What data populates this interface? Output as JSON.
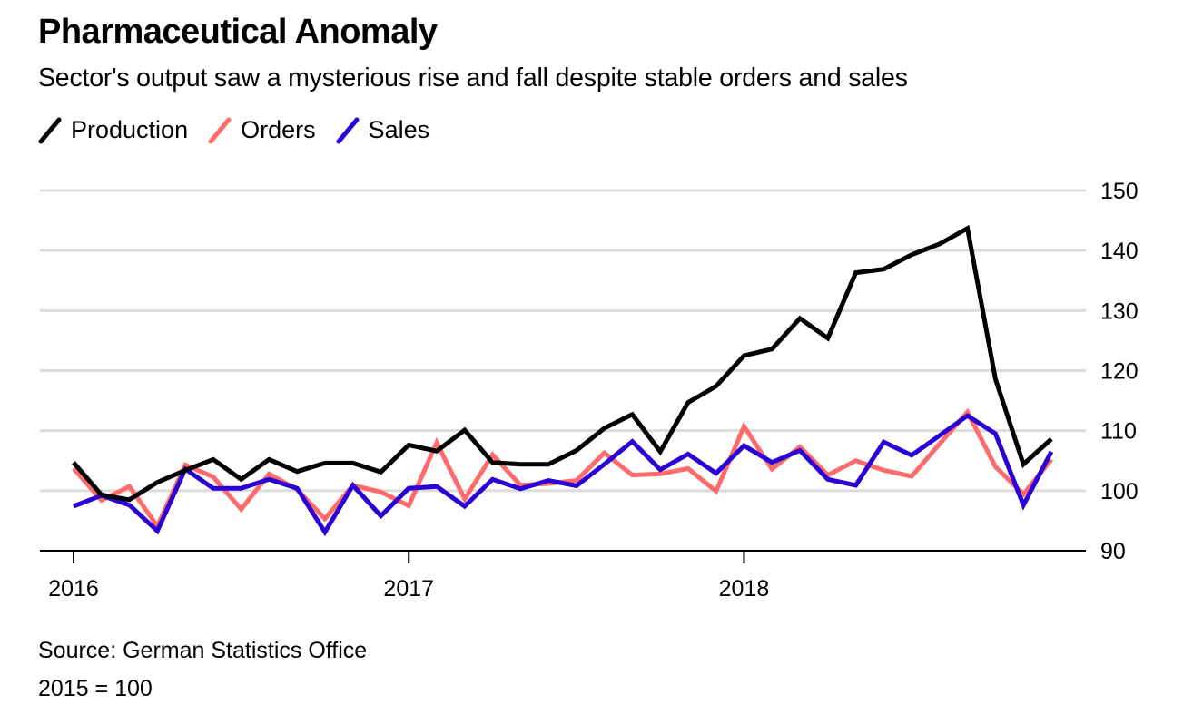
{
  "header": {
    "title": "Pharmaceutical Anomaly",
    "subtitle": "Sector's output saw a mysterious rise and fall despite stable orders and sales"
  },
  "legend": [
    {
      "label": "Production",
      "color": "#000000"
    },
    {
      "label": "Orders",
      "color": "#ff6b6b"
    },
    {
      "label": "Sales",
      "color": "#2a00d6"
    }
  ],
  "footer": {
    "source": "Source: German Statistics Office",
    "note": "2015 = 100"
  },
  "chart_data": {
    "type": "line",
    "title": "Pharmaceutical Anomaly",
    "subtitle": "Sector's output saw a mysterious rise and fall despite stable orders and sales",
    "xlabel": "",
    "ylabel": "",
    "x": [
      "2016-01",
      "2016-02",
      "2016-03",
      "2016-04",
      "2016-05",
      "2016-06",
      "2016-07",
      "2016-08",
      "2016-09",
      "2016-10",
      "2016-11",
      "2016-12",
      "2017-01",
      "2017-02",
      "2017-03",
      "2017-04",
      "2017-05",
      "2017-06",
      "2017-07",
      "2017-08",
      "2017-09",
      "2017-10",
      "2017-11",
      "2017-12",
      "2018-01",
      "2018-02",
      "2018-03",
      "2018-04",
      "2018-05",
      "2018-06",
      "2018-07",
      "2018-08",
      "2018-09",
      "2018-10",
      "2018-11",
      "2018-12"
    ],
    "x_ticks": [
      {
        "label": "2016",
        "index": 0
      },
      {
        "label": "2017",
        "index": 12
      },
      {
        "label": "2018",
        "index": 24
      }
    ],
    "y_ticks": [
      90,
      100,
      110,
      120,
      130,
      140,
      150
    ],
    "ylim": [
      90,
      150
    ],
    "y_axis_position": "right",
    "grid": true,
    "legend_position": "top-left",
    "series": [
      {
        "name": "Production",
        "color": "#000000",
        "values": [
          104.7,
          99.3,
          98.5,
          101.4,
          103.4,
          105.2,
          101.9,
          105.2,
          103.2,
          104.6,
          104.6,
          103.1,
          107.6,
          106.6,
          110.1,
          104.7,
          104.4,
          104.4,
          106.7,
          110.4,
          112.7,
          106.5,
          114.7,
          117.4,
          122.5,
          123.6,
          128.7,
          125.4,
          136.3,
          136.9,
          139.3,
          141.1,
          143.7,
          118.6,
          104.4,
          108.6
        ]
      },
      {
        "name": "Orders",
        "color": "#ff6b6b",
        "values": [
          103.7,
          98.4,
          100.7,
          94.1,
          104.3,
          102.3,
          96.9,
          102.8,
          100.2,
          95.3,
          100.9,
          99.8,
          97.5,
          108.0,
          98.6,
          106.0,
          100.9,
          101.2,
          101.7,
          106.3,
          102.6,
          102.8,
          103.7,
          99.9,
          110.7,
          103.6,
          107.3,
          102.6,
          105.0,
          103.4,
          102.4,
          107.8,
          113.1,
          104.0,
          99.4,
          105.2
        ]
      },
      {
        "name": "Sales",
        "color": "#2a00d6",
        "values": [
          97.4,
          99.2,
          97.6,
          93.3,
          103.6,
          100.4,
          100.4,
          101.9,
          100.4,
          93.1,
          100.9,
          95.8,
          100.4,
          100.7,
          97.4,
          101.9,
          100.3,
          101.7,
          100.8,
          104.4,
          108.2,
          103.5,
          106.1,
          102.9,
          107.5,
          104.7,
          106.7,
          101.9,
          100.9,
          108.1,
          105.9,
          109.2,
          112.5,
          109.5,
          97.6,
          106.5
        ]
      }
    ]
  }
}
